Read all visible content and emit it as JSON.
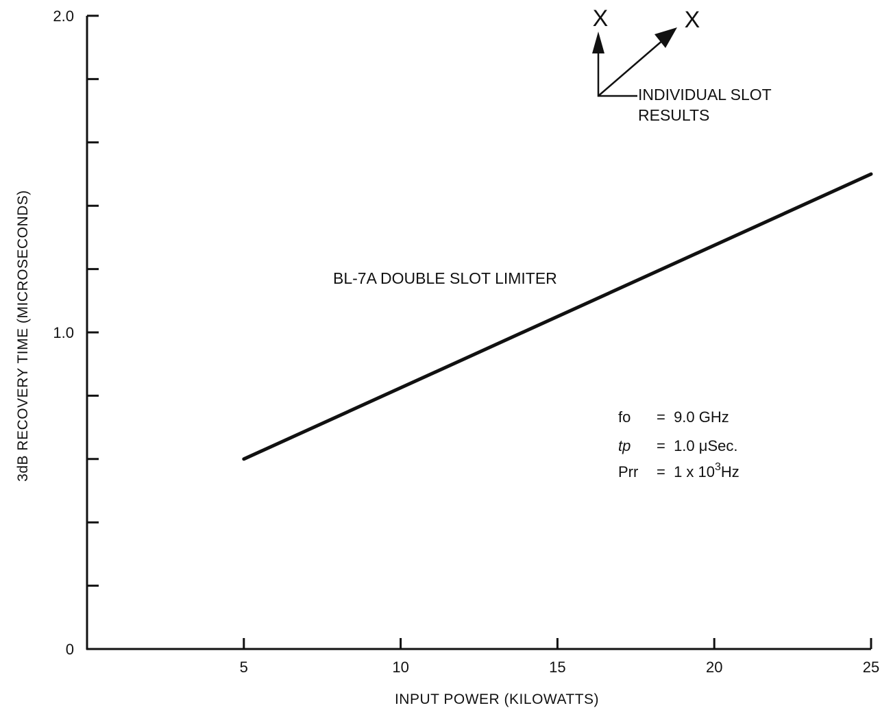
{
  "chart_data": {
    "type": "line",
    "title": "",
    "xlabel": "INPUT POWER (KILOWATTS)",
    "ylabel": "3dB RECOVERY TIME (MICROSECONDS)",
    "xlim": [
      0,
      25
    ],
    "ylim": [
      0,
      2.0
    ],
    "x_ticks": [
      5,
      10,
      15,
      20,
      25
    ],
    "y_ticks": [
      0,
      0.2,
      0.4,
      0.6,
      0.8,
      1.0,
      1.2,
      1.4,
      1.6,
      1.8,
      2.0
    ],
    "y_tick_labels": [
      {
        "value": 0,
        "label": "0"
      },
      {
        "value": 1.0,
        "label": "1.0"
      },
      {
        "value": 2.0,
        "label": "2.0"
      }
    ],
    "grid": false,
    "series": [
      {
        "name": "BL-7A DOUBLE SLOT LIMITER",
        "x": [
          5,
          25
        ],
        "y": [
          0.6,
          1.5
        ]
      }
    ],
    "markers": [
      {
        "symbol": "X"
      },
      {
        "symbol": "X"
      }
    ],
    "annotations": {
      "legend_line1": "INDIVIDUAL SLOT",
      "legend_line2": "RESULTS",
      "params": [
        {
          "label": "fo",
          "value": "=  9.0 GHz"
        },
        {
          "label": "tp",
          "value": "=  1.0 μSec."
        },
        {
          "label": "Prr",
          "value_prefix": "=  1 x 10",
          "superscript": "3",
          "value_suffix": "Hz"
        }
      ]
    },
    "colors": {
      "line": "#111111",
      "axis": "#111111"
    }
  }
}
